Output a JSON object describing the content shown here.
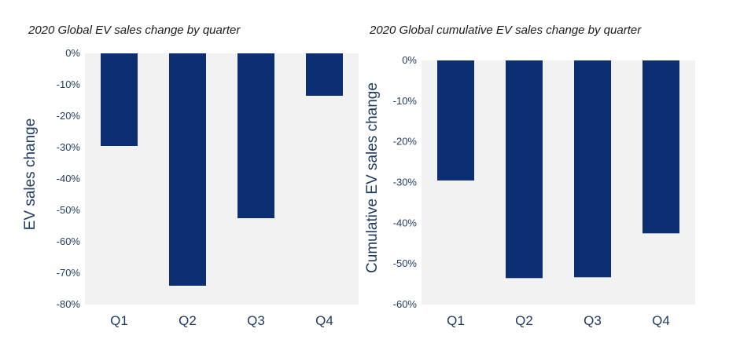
{
  "chart_data": [
    {
      "type": "bar",
      "title": "2020 Global EV sales change by quarter",
      "xlabel": "",
      "ylabel": "EV sales change",
      "categories": [
        "Q1",
        "Q2",
        "Q3",
        "Q4"
      ],
      "values": [
        -29.5,
        -74,
        -52.5,
        -13.5
      ],
      "ylim": [
        -80,
        0
      ],
      "yticks": [
        "0%",
        "-10%",
        "-20%",
        "-30%",
        "-40%",
        "-50%",
        "-60%",
        "-70%",
        "-80%"
      ],
      "bar_color": "#0b2f72",
      "background_color": "#f2f2f2",
      "grid": false,
      "legend": "none"
    },
    {
      "type": "bar",
      "title": "2020 Global cumulative EV sales change by quarter",
      "xlabel": "",
      "ylabel": "Cumulative EV sales change",
      "categories": [
        "Q1",
        "Q2",
        "Q3",
        "Q4"
      ],
      "values": [
        -29.5,
        -53.5,
        -53.3,
        -42.5
      ],
      "ylim": [
        -60,
        0
      ],
      "yticks": [
        "0%",
        "-10%",
        "-20%",
        "-30%",
        "-40%",
        "-50%",
        "-60%"
      ],
      "bar_color": "#0b2f72",
      "background_color": "#f2f2f2",
      "grid": false,
      "legend": "none"
    }
  ]
}
